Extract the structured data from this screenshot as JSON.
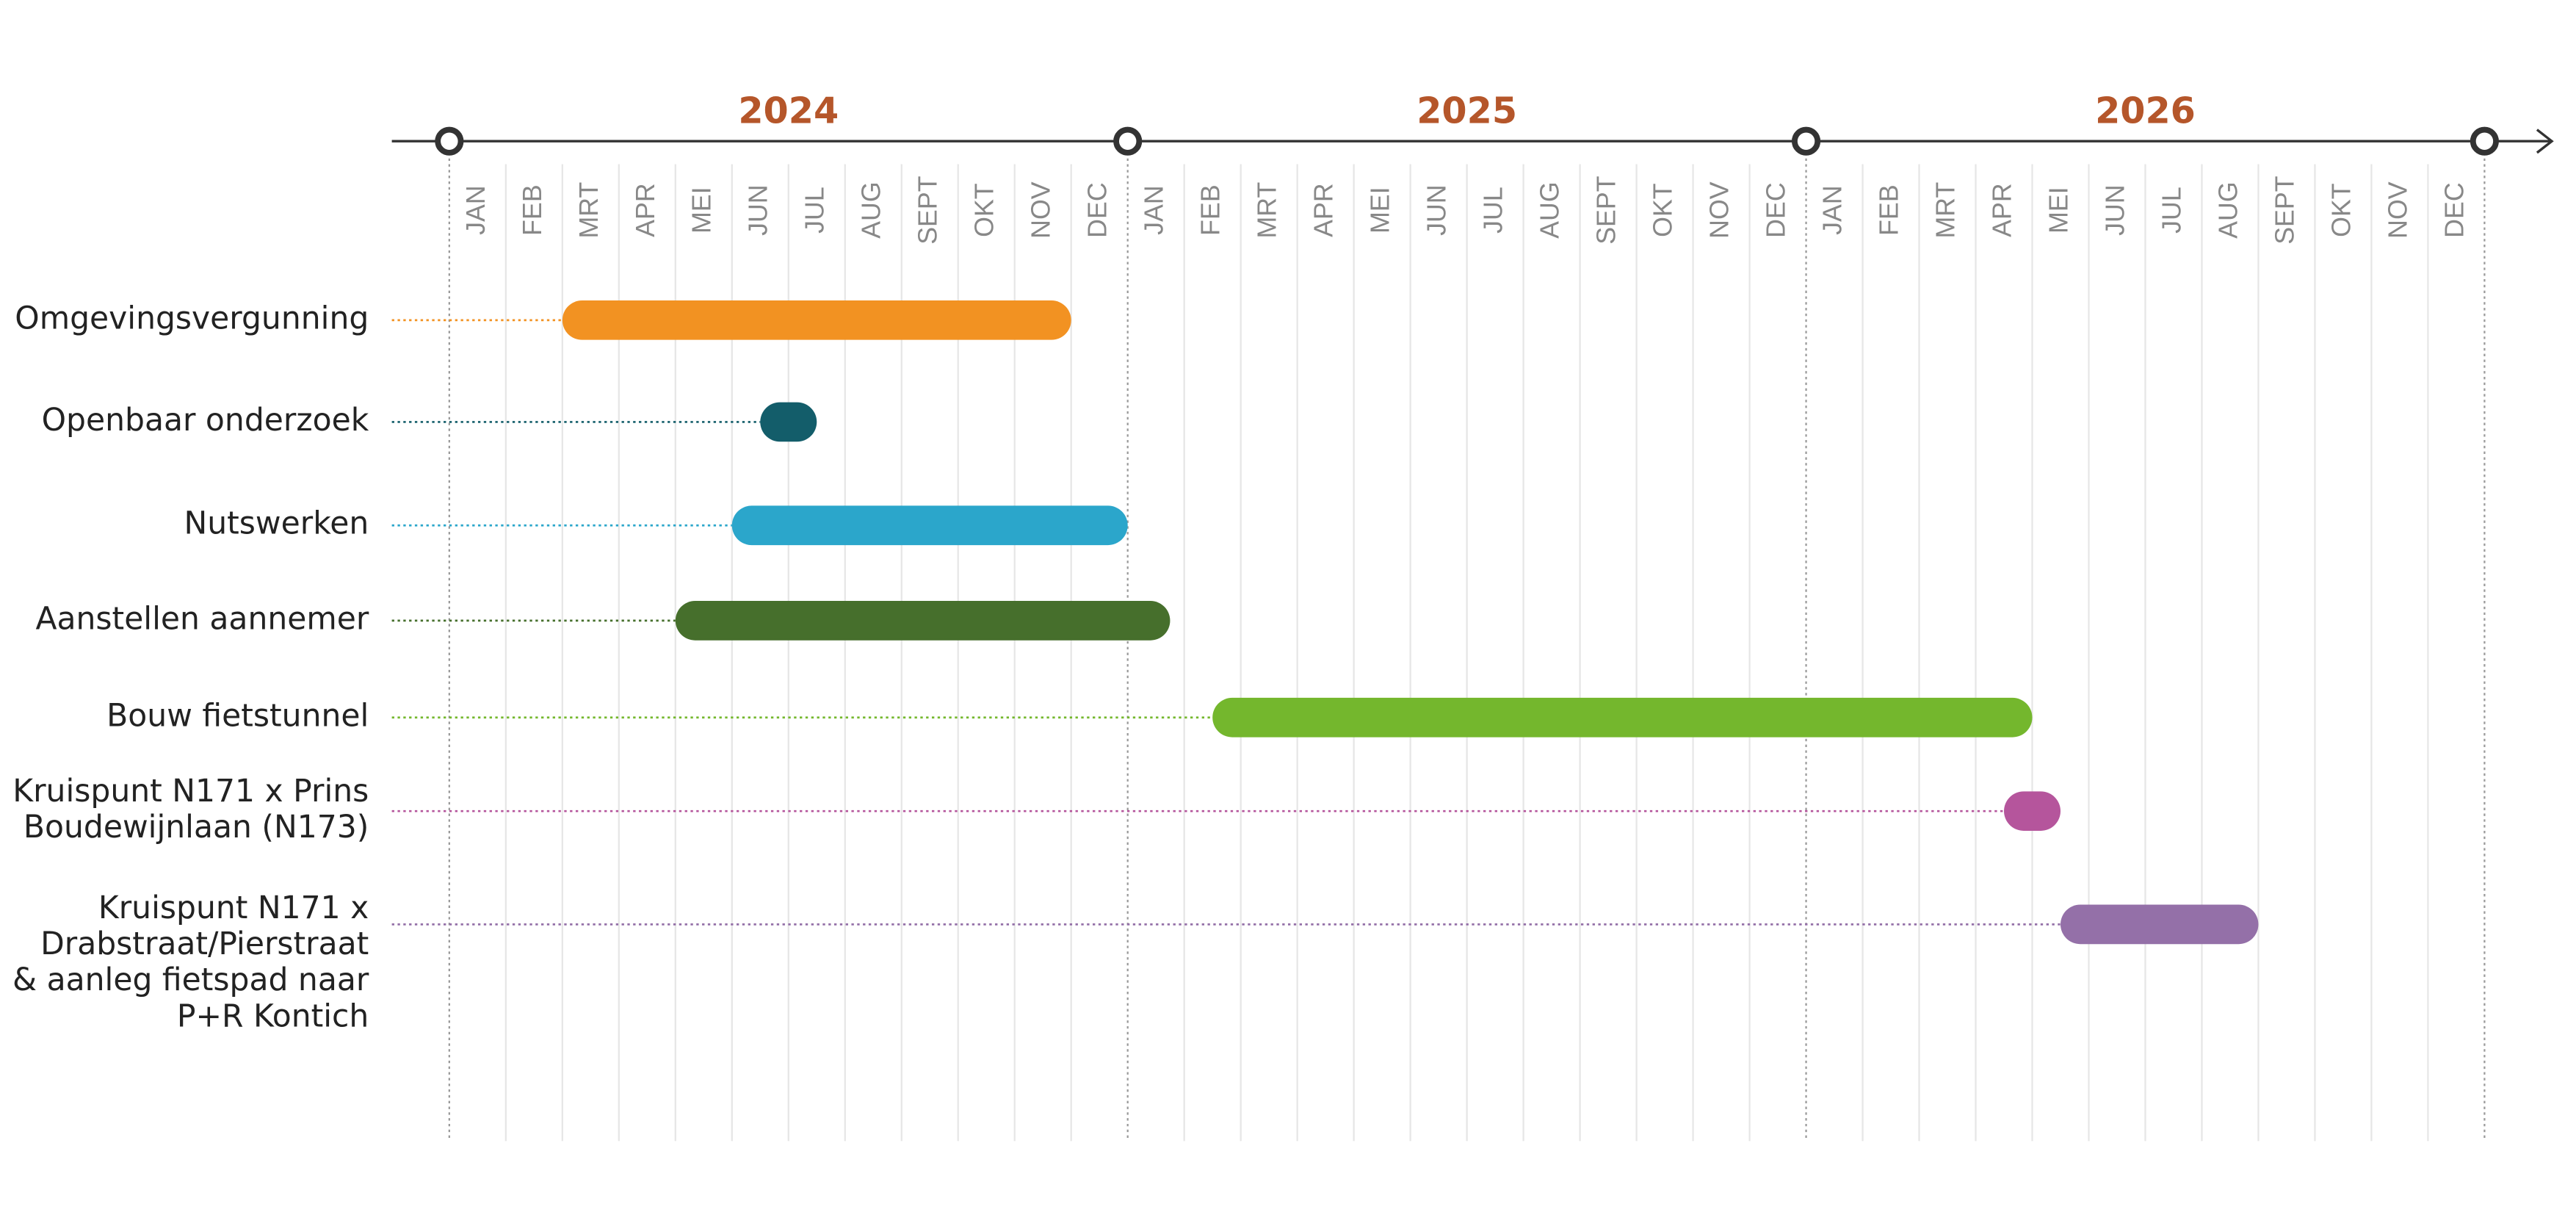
{
  "chart_data": {
    "type": "gantt",
    "years": [
      "2024",
      "2025",
      "2026"
    ],
    "categories": [
      "JAN",
      "FEB",
      "MRT",
      "APR",
      "MEI",
      "JUN",
      "JUL",
      "AUG",
      "SEPT",
      "OKT",
      "NOV",
      "DEC",
      "JAN",
      "FEB",
      "MRT",
      "APR",
      "MEI",
      "JUN",
      "JUL",
      "AUG",
      "SEPT",
      "OKT",
      "NOV",
      "DEC",
      "JAN",
      "FEB",
      "MRT",
      "APR",
      "MEI",
      "JUN",
      "JUL",
      "AUG",
      "SEPT",
      "OKT",
      "NOV",
      "DEC"
    ],
    "xlim": [
      0,
      36
    ],
    "tasks": [
      {
        "label": [
          "Omgevingsvergunning"
        ],
        "color": "#f29222",
        "start": 2,
        "end": 11
      },
      {
        "label": [
          "Openbaar onderzoek"
        ],
        "color": "#135d6a",
        "start": 5.5,
        "end": 6.5
      },
      {
        "label": [
          "Nutswerken"
        ],
        "color": "#2ba6cb",
        "start": 5,
        "end": 12
      },
      {
        "label": [
          "Aanstellen aannemer"
        ],
        "color": "#466f2c",
        "start": 4,
        "end": 12.75
      },
      {
        "label": [
          "Bouw fietstunnel"
        ],
        "color": "#74b72d",
        "start": 13.5,
        "end": 28
      },
      {
        "label": [
          "Kruispunt N171 x Prins",
          "Boudewijnlaan (N173)"
        ],
        "color": "#b5559c",
        "start": 27.5,
        "end": 28.5
      },
      {
        "label": [
          "Kruispunt N171 x",
          "Drabstraat/Pierstraat",
          "& aanleg fietspad naar",
          "P+R Kontich"
        ],
        "color": "#9470a8",
        "start": 28.5,
        "end": 32
      }
    ]
  }
}
